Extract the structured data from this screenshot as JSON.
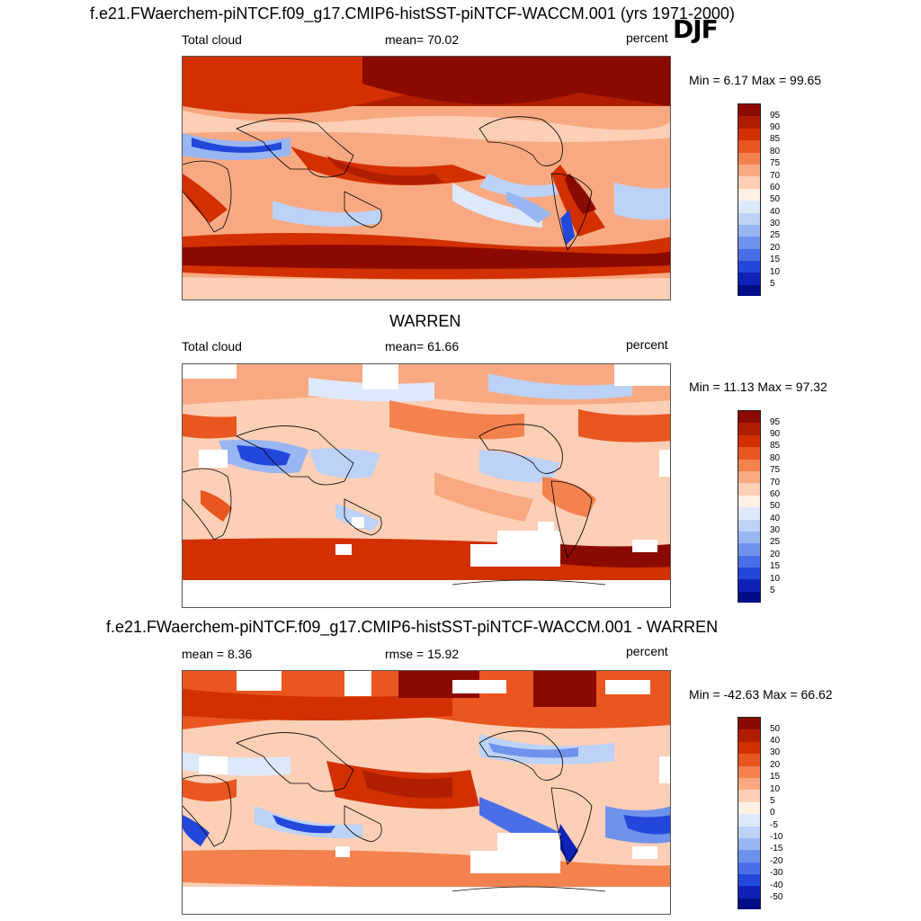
{
  "season": "DJF",
  "panels": [
    {
      "title": "f.e21.FWaerchem-piNTCF.f09_g17.CMIP6-histSST-piNTCF-WACCM.001 (yrs 1971-2000)",
      "left_label": "Total cloud",
      "center_label": "mean=  70.02",
      "right_label": "percent",
      "minmax": "Min =   6.17 Max =  99.65"
    },
    {
      "title": "WARREN",
      "left_label": "Total cloud",
      "center_label": "mean=  61.66",
      "right_label": "percent",
      "minmax": "Min =  11.13 Max =  97.32"
    },
    {
      "title": "f.e21.FWaerchem-piNTCF.f09_g17.CMIP6-histSST-piNTCF-WACCM.001 - WARREN",
      "left_label": "mean =   8.36",
      "center_label": "rmse =  15.92",
      "right_label": "percent",
      "minmax": "Min = -42.63 Max =  66.62"
    }
  ],
  "colorbar_abs": {
    "labels": [
      "95",
      "90",
      "85",
      "80",
      "75",
      "70",
      "60",
      "50",
      "40",
      "30",
      "25",
      "20",
      "15",
      "10",
      "5"
    ],
    "colors": [
      "#8b0a00",
      "#b01e00",
      "#d23000",
      "#e9561f",
      "#f4824f",
      "#f8a982",
      "#fccfb6",
      "#fff0e4",
      "#dde9fb",
      "#bcd2f7",
      "#98b6f2",
      "#6f92ec",
      "#4a6ee8",
      "#2447db",
      "#0e22b8",
      "#000d85"
    ]
  },
  "colorbar_diff": {
    "labels": [
      "50",
      "40",
      "30",
      "20",
      "15",
      "10",
      "5",
      "0",
      "-5",
      "-10",
      "-15",
      "-20",
      "-30",
      "-40",
      "-50"
    ],
    "colors": [
      "#8b0a00",
      "#b01e00",
      "#d23000",
      "#e9561f",
      "#f4824f",
      "#f8a982",
      "#fccfb6",
      "#fff0e4",
      "#dde9fb",
      "#bcd2f7",
      "#98b6f2",
      "#6f92ec",
      "#4a6ee8",
      "#2447db",
      "#0e22b8",
      "#000d85"
    ]
  }
}
